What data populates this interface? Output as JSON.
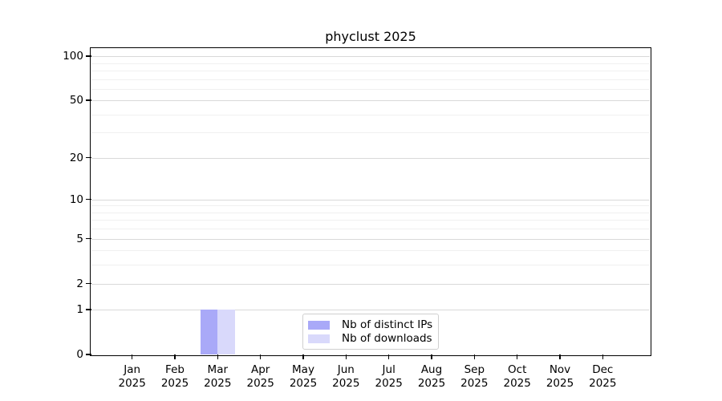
{
  "chart_data": {
    "type": "bar",
    "title": "phyclust 2025",
    "x_tick_labels": [
      {
        "month": "Jan",
        "year": "2025"
      },
      {
        "month": "Feb",
        "year": "2025"
      },
      {
        "month": "Mar",
        "year": "2025"
      },
      {
        "month": "Apr",
        "year": "2025"
      },
      {
        "month": "May",
        "year": "2025"
      },
      {
        "month": "Jun",
        "year": "2025"
      },
      {
        "month": "Jul",
        "year": "2025"
      },
      {
        "month": "Aug",
        "year": "2025"
      },
      {
        "month": "Sep",
        "year": "2025"
      },
      {
        "month": "Oct",
        "year": "2025"
      },
      {
        "month": "Nov",
        "year": "2025"
      },
      {
        "month": "Dec",
        "year": "2025"
      }
    ],
    "series": [
      {
        "name": "Nb of distinct IPs",
        "color": "#a9a9f8",
        "values": [
          0,
          0,
          1,
          0,
          0,
          0,
          0,
          0,
          0,
          0,
          0,
          0
        ]
      },
      {
        "name": "Nb of downloads",
        "color": "#d9d9fb",
        "values": [
          0,
          0,
          1,
          0,
          0,
          0,
          0,
          0,
          0,
          0,
          0,
          0
        ]
      }
    ],
    "y_scale": "log1p",
    "y_ticks": [
      0,
      1,
      2,
      5,
      10,
      20,
      50,
      100
    ],
    "y_minor_gridlines": [
      3,
      4,
      6,
      7,
      8,
      9,
      30,
      40,
      60,
      70,
      80,
      90
    ],
    "ylim": [
      0,
      112
    ],
    "xlim": [
      -0.95,
      12.1
    ],
    "bar_width": 0.4,
    "grid": "horizontal",
    "legend_position": "lower center",
    "colors": {
      "major_grid": "#d9d9d9",
      "minor_grid": "#f0f0f0",
      "axis": "#000000",
      "background": "#ffffff"
    }
  }
}
